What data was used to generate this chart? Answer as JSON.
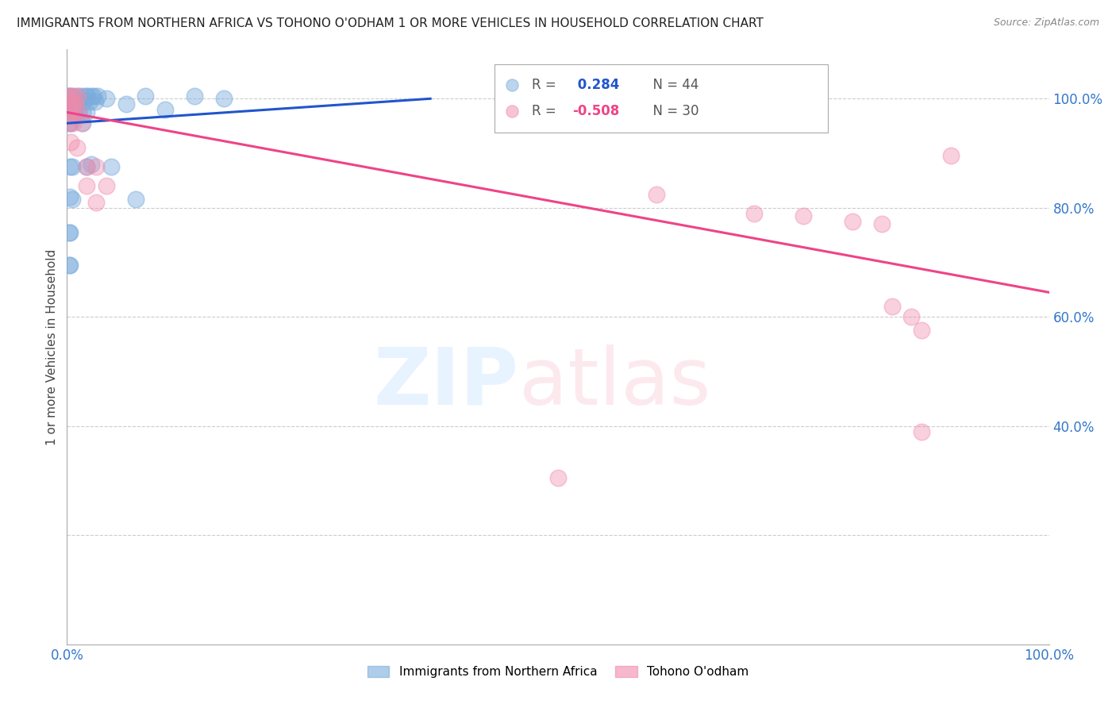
{
  "title": "IMMIGRANTS FROM NORTHERN AFRICA VS TOHONO O'ODHAM 1 OR MORE VEHICLES IN HOUSEHOLD CORRELATION CHART",
  "source": "Source: ZipAtlas.com",
  "ylabel": "1 or more Vehicles in Household",
  "blue_label": "Immigrants from Northern Africa",
  "pink_label": "Tohono O'odham",
  "blue_R": 0.284,
  "blue_N": 44,
  "pink_R": -0.508,
  "pink_N": 30,
  "xmin": 0.0,
  "xmax": 1.0,
  "ymin": 0.0,
  "ymax": 1.09,
  "blue_color": "#7aacdc",
  "pink_color": "#f08aaa",
  "blue_line_color": "#2255cc",
  "pink_line_color": "#ee4488",
  "blue_dots": [
    [
      0.001,
      1.005
    ],
    [
      0.003,
      1.005
    ],
    [
      0.005,
      1.005
    ],
    [
      0.007,
      0.995
    ],
    [
      0.009,
      0.995
    ],
    [
      0.011,
      1.005
    ],
    [
      0.013,
      0.995
    ],
    [
      0.015,
      1.005
    ],
    [
      0.017,
      0.995
    ],
    [
      0.019,
      1.005
    ],
    [
      0.021,
      1.005
    ],
    [
      0.023,
      0.995
    ],
    [
      0.025,
      1.005
    ],
    [
      0.027,
      1.005
    ],
    [
      0.029,
      0.995
    ],
    [
      0.031,
      1.005
    ],
    [
      0.002,
      0.98
    ],
    [
      0.004,
      0.975
    ],
    [
      0.006,
      0.975
    ],
    [
      0.008,
      0.975
    ],
    [
      0.012,
      0.975
    ],
    [
      0.016,
      0.975
    ],
    [
      0.02,
      0.975
    ],
    [
      0.002,
      0.955
    ],
    [
      0.004,
      0.955
    ],
    [
      0.016,
      0.955
    ],
    [
      0.003,
      0.875
    ],
    [
      0.005,
      0.875
    ],
    [
      0.04,
      1.0
    ],
    [
      0.06,
      0.99
    ],
    [
      0.08,
      1.005
    ],
    [
      0.1,
      0.98
    ],
    [
      0.13,
      1.005
    ],
    [
      0.16,
      1.0
    ],
    [
      0.003,
      0.82
    ],
    [
      0.005,
      0.815
    ],
    [
      0.045,
      0.875
    ],
    [
      0.002,
      0.755
    ],
    [
      0.003,
      0.755
    ],
    [
      0.07,
      0.815
    ],
    [
      0.002,
      0.695
    ],
    [
      0.003,
      0.695
    ],
    [
      0.02,
      0.875
    ],
    [
      0.025,
      0.88
    ]
  ],
  "pink_dots": [
    [
      0.001,
      1.005
    ],
    [
      0.003,
      1.005
    ],
    [
      0.005,
      0.99
    ],
    [
      0.007,
      1.005
    ],
    [
      0.009,
      0.99
    ],
    [
      0.011,
      1.005
    ],
    [
      0.002,
      0.975
    ],
    [
      0.006,
      0.975
    ],
    [
      0.012,
      0.975
    ],
    [
      0.002,
      0.955
    ],
    [
      0.006,
      0.955
    ],
    [
      0.015,
      0.955
    ],
    [
      0.004,
      0.92
    ],
    [
      0.01,
      0.91
    ],
    [
      0.02,
      0.875
    ],
    [
      0.03,
      0.875
    ],
    [
      0.02,
      0.84
    ],
    [
      0.04,
      0.84
    ],
    [
      0.6,
      0.825
    ],
    [
      0.7,
      0.79
    ],
    [
      0.75,
      0.785
    ],
    [
      0.8,
      0.775
    ],
    [
      0.83,
      0.77
    ],
    [
      0.84,
      0.62
    ],
    [
      0.86,
      0.6
    ],
    [
      0.87,
      0.575
    ],
    [
      0.9,
      0.895
    ],
    [
      0.87,
      0.39
    ],
    [
      0.5,
      0.305
    ],
    [
      0.03,
      0.81
    ]
  ],
  "blue_line": [
    [
      0.0,
      0.955
    ],
    [
      0.37,
      1.0
    ]
  ],
  "pink_line": [
    [
      0.0,
      0.975
    ],
    [
      1.0,
      0.645
    ]
  ],
  "grid_yticks": [
    0.2,
    0.4,
    0.6,
    0.8,
    1.0
  ],
  "ytick_right": [
    0.4,
    0.6,
    0.8,
    1.0
  ],
  "ytick_right_labels": [
    "40.0%",
    "60.0%",
    "80.0%",
    "100.0%"
  ]
}
